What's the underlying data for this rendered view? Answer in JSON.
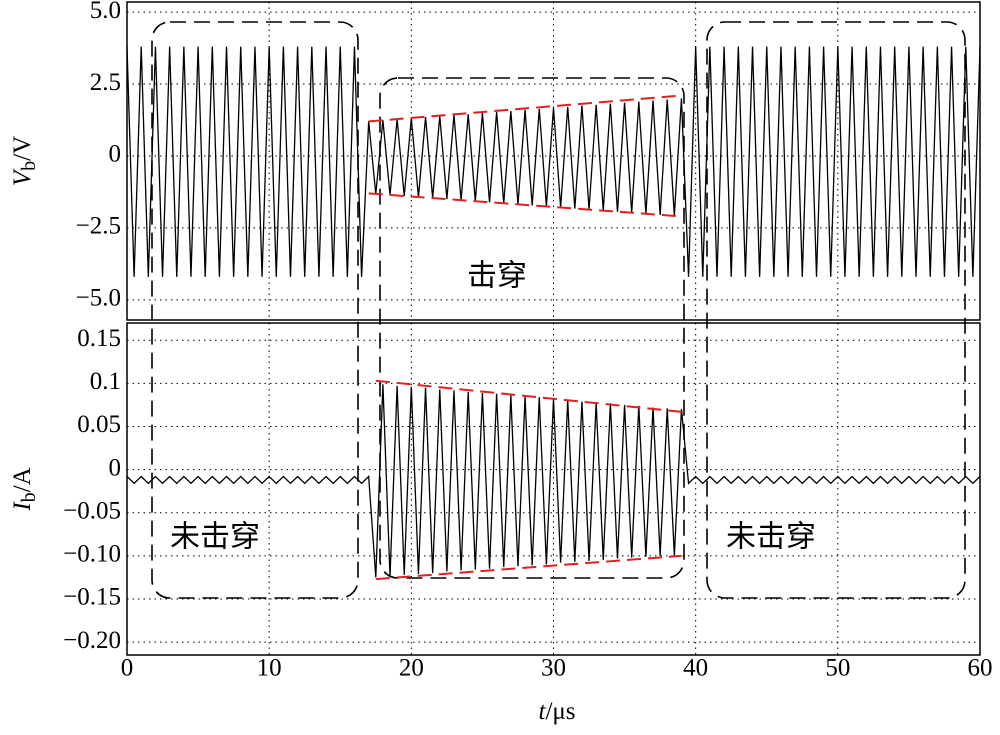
{
  "chart_data": {
    "type": "line",
    "xlabel": "t/μs",
    "xlim": [
      0,
      60
    ],
    "xticks": [
      0,
      10,
      20,
      30,
      40,
      50,
      60
    ],
    "grid": true,
    "x": [
      0,
      0.5,
      1,
      1.5,
      2,
      2.5,
      3,
      3.5,
      4,
      4.5,
      5,
      5.5,
      6,
      6.5,
      7,
      7.5,
      8,
      8.5,
      9,
      9.5,
      10,
      10.5,
      11,
      11.5,
      12,
      12.5,
      13,
      13.5,
      14,
      14.5,
      15,
      15.5,
      16,
      16.5,
      17,
      17.5,
      18,
      18.5,
      19,
      19.5,
      20,
      20.5,
      21,
      21.5,
      22,
      22.5,
      23,
      23.5,
      24,
      24.5,
      25,
      25.5,
      26,
      26.5,
      27,
      27.5,
      28,
      28.5,
      29,
      29.5,
      30,
      30.5,
      31,
      31.5,
      32,
      32.5,
      33,
      33.5,
      34,
      34.5,
      35,
      35.5,
      36,
      36.5,
      37,
      37.5,
      38,
      38.5,
      39,
      39.5,
      40,
      40.5,
      41,
      41.5,
      42,
      42.5,
      43,
      43.5,
      44,
      44.5,
      45,
      45.5,
      46,
      46.5,
      47,
      47.5,
      48,
      48.5,
      49,
      49.5,
      50,
      50.5,
      51,
      51.5,
      52,
      52.5,
      53,
      53.5,
      54,
      54.5,
      55,
      55.5,
      56,
      56.5,
      57,
      57.5,
      58,
      58.5,
      59,
      59.5,
      60
    ],
    "panels": [
      {
        "ylabel": "Vb/V",
        "ylim": [
          -5.7,
          5.35
        ],
        "yticks": [
          {
            "value": 5,
            "label": "5.0"
          },
          2.5,
          0,
          {
            "value": -2.5,
            "label": "−2.5"
          },
          {
            "value": -5,
            "label": "−5.0"
          }
        ],
        "annotations": [
          "击穿"
        ],
        "series": [
          {
            "color": "#000000",
            "values": [
              3.8,
              -4.2,
              3.8,
              -4.2,
              3.8,
              -4.2,
              3.8,
              -4.2,
              3.8,
              -4.2,
              3.8,
              -4.2,
              3.8,
              -4.2,
              3.8,
              -4.2,
              3.8,
              -4.2,
              3.8,
              -4.2,
              3.8,
              -4.2,
              3.8,
              -4.2,
              3.8,
              -4.2,
              3.8,
              -4.2,
              3.8,
              -4.2,
              3.8,
              -4.2,
              3.8,
              -4.2,
              1.2,
              -1.32,
              1.24,
              -1.35,
              1.27,
              -1.39,
              1.31,
              -1.43,
              1.35,
              -1.46,
              1.38,
              -1.5,
              1.42,
              -1.54,
              1.45,
              -1.57,
              1.49,
              -1.61,
              1.53,
              -1.65,
              1.56,
              -1.68,
              1.6,
              -1.72,
              1.64,
              -1.75,
              1.67,
              -1.79,
              1.71,
              -1.83,
              1.75,
              -1.86,
              1.78,
              -1.9,
              1.82,
              -1.94,
              1.85,
              -1.97,
              1.89,
              -2.01,
              1.93,
              -2.05,
              1.96,
              -2.08,
              2.0,
              -4.2,
              3.8,
              -4.2,
              3.8,
              -4.2,
              3.8,
              -4.2,
              3.8,
              -4.2,
              3.8,
              -4.2,
              3.8,
              -4.2,
              3.8,
              -4.2,
              3.8,
              -4.2,
              3.8,
              -4.2,
              3.8,
              -4.2,
              3.8,
              -4.2,
              3.8,
              -4.2,
              3.8,
              -4.2,
              3.8,
              -4.2,
              3.8,
              -4.2,
              3.8,
              -4.2,
              3.8,
              -4.2,
              3.8,
              -4.2,
              3.8,
              -4.2,
              3.8,
              -4.2,
              3.8
            ]
          }
        ],
        "envelopes": [
          {
            "color": "#e02020",
            "x": [
              17,
              39
            ],
            "y": [
              1.2,
              2.1
            ]
          },
          {
            "color": "#e02020",
            "x": [
              17,
              39
            ],
            "y": [
              -1.3,
              -2.1
            ]
          }
        ]
      },
      {
        "ylabel": "Ib/A",
        "ylim": [
          -0.215,
          0.17
        ],
        "yticks": [
          0.15,
          0.1,
          0.05,
          0,
          {
            "value": -0.05,
            "label": "−0.05"
          },
          {
            "value": -0.1,
            "label": "−0.10"
          },
          {
            "value": -0.15,
            "label": "−0.15"
          },
          {
            "value": -0.2,
            "label": "−0.20"
          }
        ],
        "annotations": [
          "未击穿",
          "未击穿"
        ],
        "series": [
          {
            "color": "#000000",
            "values": [
              -0.008,
              -0.016,
              -0.008,
              -0.016,
              -0.008,
              -0.016,
              -0.008,
              -0.016,
              -0.008,
              -0.016,
              -0.008,
              -0.016,
              -0.008,
              -0.016,
              -0.008,
              -0.016,
              -0.008,
              -0.016,
              -0.008,
              -0.016,
              -0.008,
              -0.016,
              -0.008,
              -0.016,
              -0.008,
              -0.016,
              -0.008,
              -0.016,
              -0.008,
              -0.016,
              -0.008,
              -0.016,
              -0.008,
              -0.016,
              -0.008,
              -0.125,
              0.099,
              -0.124,
              0.097,
              -0.122,
              0.096,
              -0.121,
              0.095,
              -0.12,
              0.093,
              -0.118,
              0.092,
              -0.117,
              0.09,
              -0.116,
              0.089,
              -0.115,
              0.088,
              -0.113,
              0.086,
              -0.112,
              0.085,
              -0.111,
              0.084,
              -0.11,
              0.082,
              -0.108,
              0.081,
              -0.107,
              0.079,
              -0.106,
              0.078,
              -0.105,
              0.077,
              -0.103,
              0.075,
              -0.102,
              0.074,
              -0.101,
              0.072,
              -0.1,
              0.071,
              -0.1,
              0.07,
              -0.016,
              -0.008,
              -0.016,
              -0.008,
              -0.016,
              -0.008,
              -0.016,
              -0.008,
              -0.016,
              -0.008,
              -0.016,
              -0.008,
              -0.016,
              -0.008,
              -0.016,
              -0.008,
              -0.016,
              -0.008,
              -0.016,
              -0.008,
              -0.016,
              -0.008,
              -0.016,
              -0.008,
              -0.016,
              -0.008,
              -0.016,
              -0.008,
              -0.016,
              -0.008,
              -0.016,
              -0.008,
              -0.016,
              -0.008,
              -0.016,
              -0.008,
              -0.016,
              -0.008,
              -0.016,
              -0.008,
              -0.016,
              -0.008
            ]
          }
        ],
        "envelopes": [
          {
            "color": "#e02020",
            "x": [
              17.5,
              39
            ],
            "y": [
              0.103,
              0.067
            ]
          },
          {
            "color": "#e02020",
            "x": [
              17.5,
              39
            ],
            "y": [
              -0.127,
              -0.1
            ]
          }
        ]
      }
    ]
  }
}
